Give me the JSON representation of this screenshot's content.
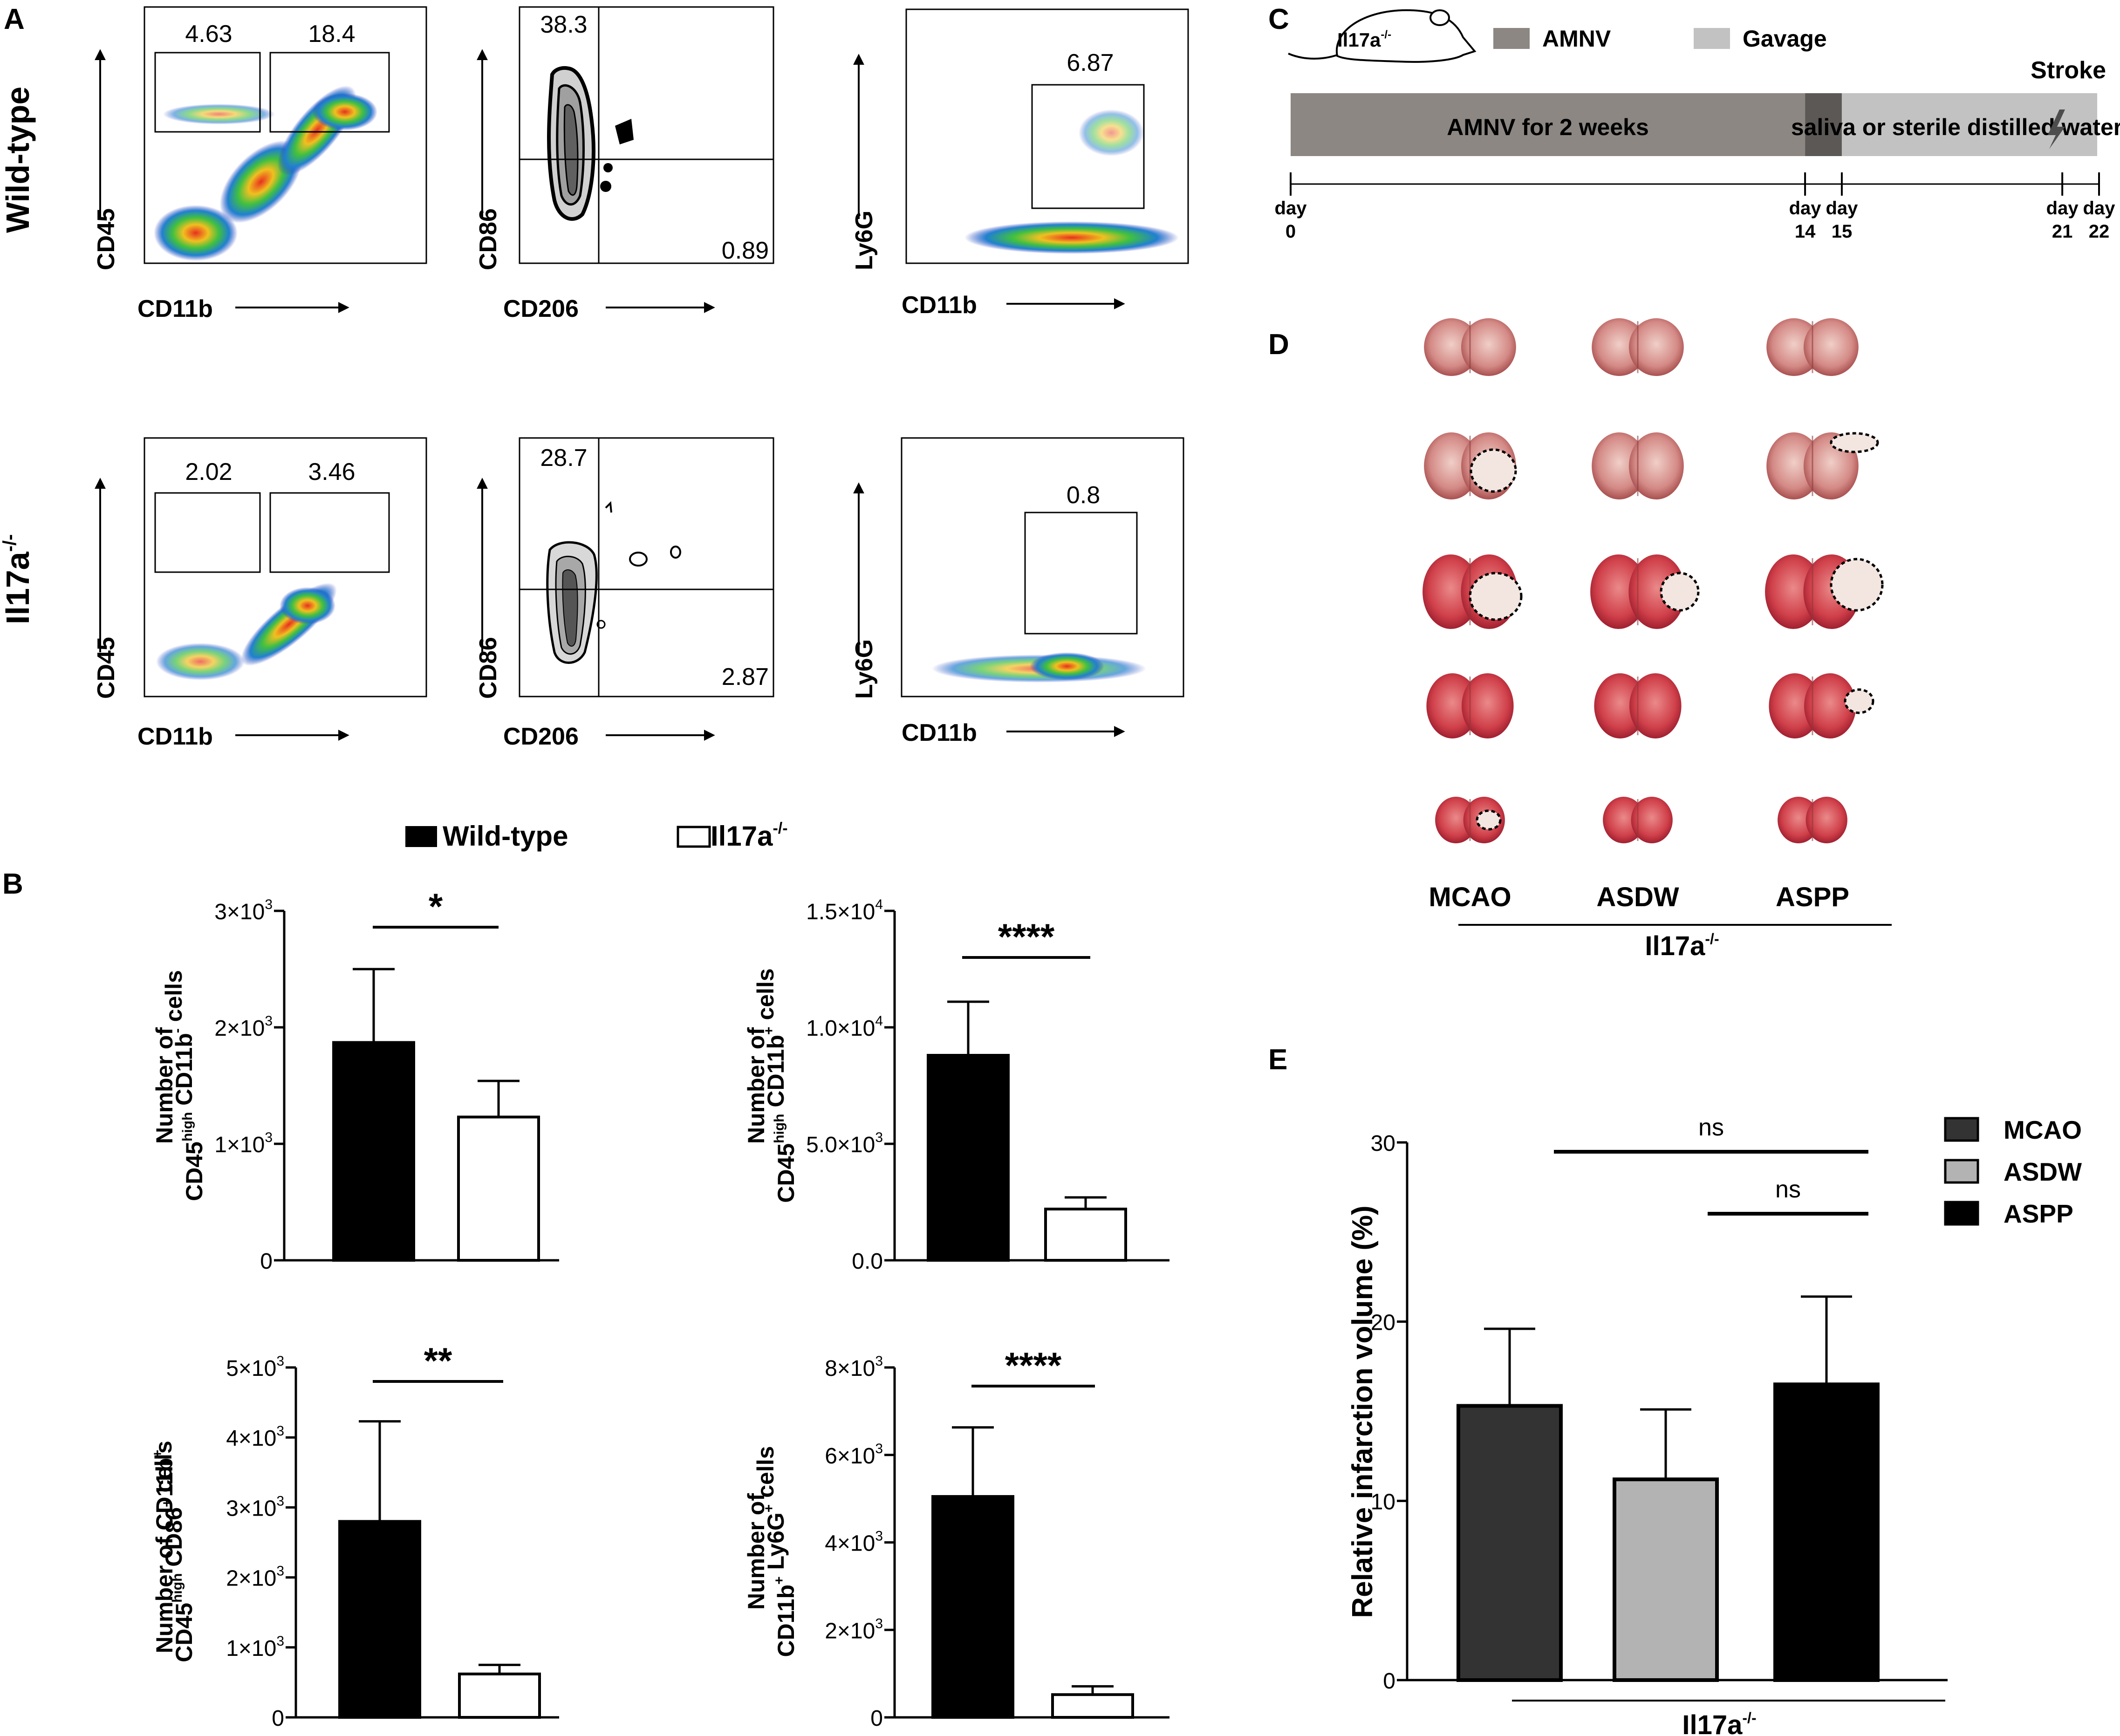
{
  "panel_letters": {
    "a": "A",
    "b": "B",
    "c": "C",
    "d": "D",
    "e": "E"
  },
  "genotypes": {
    "wt": "Wild-type",
    "ko": "Il17a",
    "ko_sup": "-/-"
  },
  "flow": {
    "axes": {
      "cd45": "CD45",
      "cd11b": "CD11b",
      "cd86": "CD86",
      "cd206": "CD206",
      "ly6g": "Ly6G"
    },
    "wt": {
      "gate1": "4.63",
      "gate2": "18.4",
      "quad_ul": "38.3",
      "quad_lr": "0.89",
      "ly6g_gate": "6.87"
    },
    "ko": {
      "gate1": "2.02",
      "gate2": "3.46",
      "quad_ul": "28.7",
      "quad_lr": "2.87",
      "ly6g_gate": "0.8"
    }
  },
  "timeline": {
    "mouse_label": "Il17a",
    "mouse_sup": "-/-",
    "legend_amnv": "AMNV",
    "legend_gavage": "Gavage",
    "stroke": "Stroke",
    "bar1_text": "AMNV for 2 weeks",
    "bar2_text": "saliva or sterile distilled water",
    "day_word": "day",
    "days": [
      {
        "n": "0",
        "v": 0
      },
      {
        "n": "14",
        "v": 14
      },
      {
        "n": "15",
        "v": 15
      },
      {
        "n": "21",
        "v": 21
      },
      {
        "n": "22",
        "v": 22
      }
    ],
    "colors": {
      "amnv": "#8c8783",
      "gavage": "#c2c2c2",
      "overlap": "#5c5856"
    }
  },
  "brain": {
    "groups": [
      "MCAO",
      "ASDW",
      "ASPP"
    ],
    "footer": "Il17a",
    "footer_sup": "-/-"
  },
  "legend_b": {
    "wt": "Wild-type",
    "ko": "Il17a",
    "ko_sup": "-/-"
  },
  "chart_data": [
    {
      "type": "bar",
      "id": "b1",
      "categories": [
        "Wild-type",
        "Il17a-/-"
      ],
      "values": [
        1870,
        1230
      ],
      "errors": [
        630,
        310
      ],
      "ylim": [
        0,
        3000
      ],
      "yticks": [
        {
          "v": 0,
          "m": "0",
          "e": ""
        },
        {
          "v": 1000,
          "m": "1×10",
          "e": "3"
        },
        {
          "v": 2000,
          "m": "2×10",
          "e": "3"
        },
        {
          "v": 3000,
          "m": "3×10",
          "e": "3"
        }
      ],
      "ylabel": [
        {
          "t": "Number of"
        },
        {
          "t": "CD45",
          "s": "high",
          "t2": " CD11b",
          "s2": "-",
          "t3": " cells"
        }
      ],
      "sig": "*"
    },
    {
      "type": "bar",
      "id": "b2",
      "categories": [
        "Wild-type",
        "Il17a-/-"
      ],
      "values": [
        8800,
        2200
      ],
      "errors": [
        2300,
        500
      ],
      "ylim": [
        0,
        15000
      ],
      "yticks": [
        {
          "v": 0,
          "m": "0.0",
          "e": ""
        },
        {
          "v": 5000,
          "m": "5.0×10",
          "e": "3"
        },
        {
          "v": 10000,
          "m": "1.0×10",
          "e": "4"
        },
        {
          "v": 15000,
          "m": "1.5×10",
          "e": "4"
        }
      ],
      "ylabel": [
        {
          "t": "Number of"
        },
        {
          "t": "CD45",
          "s": "high",
          "t2": " CD11b",
          "s2": "+",
          "t3": " cells"
        }
      ],
      "sig": "****"
    },
    {
      "type": "bar",
      "id": "b3",
      "categories": [
        "Wild-type",
        "Il17a-/-"
      ],
      "values": [
        2800,
        620
      ],
      "errors": [
        1430,
        130
      ],
      "ylim": [
        0,
        5000
      ],
      "yticks": [
        {
          "v": 0,
          "m": "0",
          "e": ""
        },
        {
          "v": 1000,
          "m": "1×10",
          "e": "3"
        },
        {
          "v": 2000,
          "m": "2×10",
          "e": "3"
        },
        {
          "v": 3000,
          "m": "3×10",
          "e": "3"
        },
        {
          "v": 4000,
          "m": "4×10",
          "e": "3"
        },
        {
          "v": 5000,
          "m": "5×10",
          "e": "3"
        }
      ],
      "ylabel": [
        {
          "t": "Number of CD11b",
          "s": "+"
        },
        {
          "t": "CD45",
          "s": "high",
          "t2": " CD86",
          "s2": "+",
          "t3": " cells"
        }
      ],
      "sig": "**"
    },
    {
      "type": "bar",
      "id": "b4",
      "categories": [
        "Wild-type",
        "Il17a-/-"
      ],
      "values": [
        5050,
        520
      ],
      "errors": [
        1580,
        190
      ],
      "ylim": [
        0,
        8000
      ],
      "yticks": [
        {
          "v": 0,
          "m": "0",
          "e": ""
        },
        {
          "v": 2000,
          "m": "2×10",
          "e": "3"
        },
        {
          "v": 4000,
          "m": "4×10",
          "e": "3"
        },
        {
          "v": 6000,
          "m": "6×10",
          "e": "3"
        },
        {
          "v": 8000,
          "m": "8×10",
          "e": "3"
        }
      ],
      "ylabel": [
        {
          "t": "Number of"
        },
        {
          "t": "CD11b",
          "s": "+",
          "t2": " Ly6G",
          "s2": "+",
          "t3": " cells"
        }
      ],
      "sig": "****"
    },
    {
      "type": "bar",
      "id": "e",
      "categories": [
        "MCAO",
        "ASDW",
        "ASPP"
      ],
      "values": [
        15.3,
        11.2,
        16.5
      ],
      "errors": [
        4.3,
        3.9,
        4.9
      ],
      "ylim": [
        0,
        30
      ],
      "yticks": [
        {
          "v": 0,
          "m": "0",
          "e": ""
        },
        {
          "v": 10,
          "m": "10",
          "e": ""
        },
        {
          "v": 20,
          "m": "20",
          "e": ""
        },
        {
          "v": 30,
          "m": "30",
          "e": ""
        }
      ],
      "ylabel": "Relative infarction volume (%)",
      "xlabel": "Il17a",
      "xlabel_sup": "-/-",
      "colors": [
        "#333333",
        "#b3b3b3",
        "#000000"
      ],
      "legend": [
        "MCAO",
        "ASDW",
        "ASPP"
      ],
      "comparisons": [
        {
          "from": "MCAO",
          "to": "ASPP",
          "label": "ns"
        },
        {
          "from": "ASDW",
          "to": "ASPP",
          "label": "ns"
        }
      ]
    }
  ]
}
